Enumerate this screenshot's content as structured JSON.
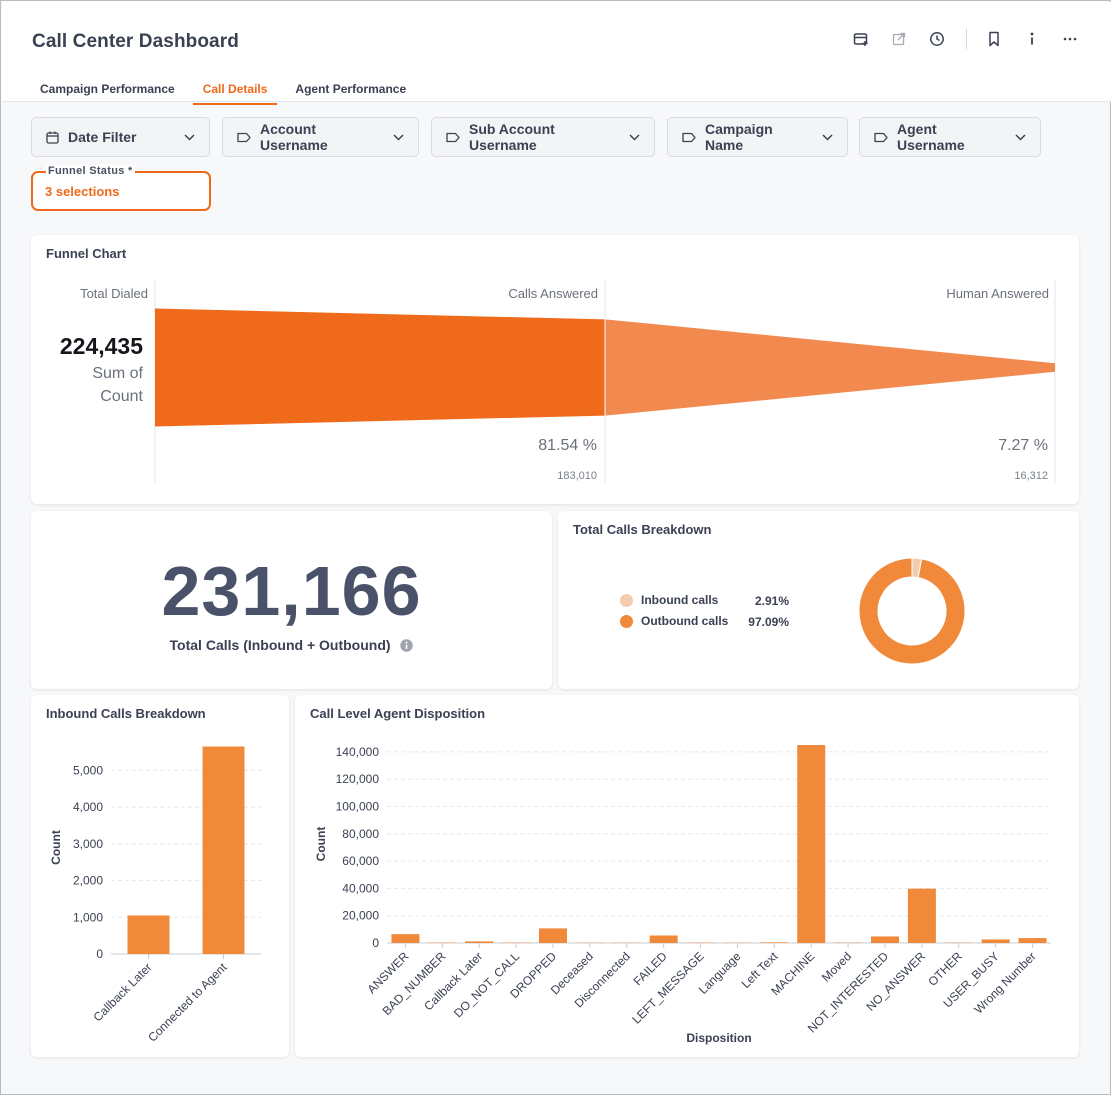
{
  "header": {
    "title": "Call Center Dashboard",
    "toolbar_icons": [
      "calendar-add-icon",
      "external-link-icon",
      "clock-icon",
      "bookmark-icon",
      "info-icon",
      "more-icon"
    ],
    "tabs": [
      {
        "label": "Campaign Performance",
        "active": false
      },
      {
        "label": "Call Details",
        "active": true
      },
      {
        "label": "Agent Performance",
        "active": false
      }
    ]
  },
  "filters": {
    "date": "Date Filter",
    "account": "Account Username",
    "sub_account": "Sub Account Username",
    "campaign": "Campaign Name",
    "agent": "Agent Username",
    "funnel_status": {
      "label": "Funnel Status *",
      "value": "3 selections"
    }
  },
  "colors": {
    "accent": "#ee6a1b",
    "funnel_dark": "#ef6a1a",
    "funnel_light": "#f2894e",
    "bar": "#f08a3a",
    "inbound": "#f5cbb0"
  },
  "funnel": {
    "title": "Funnel Chart",
    "stages": [
      {
        "label": "Total Dialed",
        "value": "224,435",
        "sub": "Sum of Count",
        "sub1": "Sum of",
        "sub2": "Count"
      },
      {
        "label": "Calls Answered",
        "pct": "81.54 %",
        "count": "183,010"
      },
      {
        "label": "Human Answered",
        "pct": "7.27 %",
        "count": "16,312"
      }
    ],
    "values": [
      224435,
      183010,
      16312
    ]
  },
  "kpi": {
    "value": "231,166",
    "label": "Total Calls (Inbound + Outbound)"
  },
  "breakdown": {
    "title": "Total Calls Breakdown",
    "items": [
      {
        "label": "Inbound calls",
        "pct": "2.91%",
        "value": 2.91
      },
      {
        "label": "Outbound calls",
        "pct": "97.09%",
        "value": 97.09
      }
    ]
  },
  "chart_data": [
    {
      "type": "bar",
      "title": "Inbound Calls Breakdown",
      "xlabel": "",
      "ylabel": "Count",
      "categories": [
        "Callback Later",
        "Connected to Agent"
      ],
      "values": [
        1050,
        5650
      ],
      "yticks": [
        "0",
        "1,000",
        "2,000",
        "3,000",
        "4,000",
        "5,000"
      ],
      "ylim": [
        0,
        5800
      ]
    },
    {
      "type": "bar",
      "title": "Call Level Agent Disposition",
      "xlabel": "Disposition",
      "ylabel": "Count",
      "categories": [
        "ANSWER",
        "BAD_NUMBER",
        "Callback Later",
        "DO_NOT_CALL",
        "DROPPED",
        "Deceased",
        "Disconnected",
        "FAILED",
        "LEFT_MESSAGE",
        "Language",
        "Left Text",
        "MACHINE",
        "Moved",
        "NOT_INTERESTED",
        "NO_ANSWER",
        "OTHER",
        "USER_BUSY",
        "Wrong Number"
      ],
      "values": [
        6500,
        300,
        1200,
        300,
        10700,
        200,
        200,
        5500,
        300,
        200,
        500,
        145000,
        300,
        4800,
        39800,
        300,
        2600,
        3600
      ],
      "yticks": [
        "0",
        "20,000",
        "40,000",
        "60,000",
        "80,000",
        "100,000",
        "120,000",
        "140,000"
      ],
      "ylim": [
        0,
        145000
      ]
    }
  ]
}
